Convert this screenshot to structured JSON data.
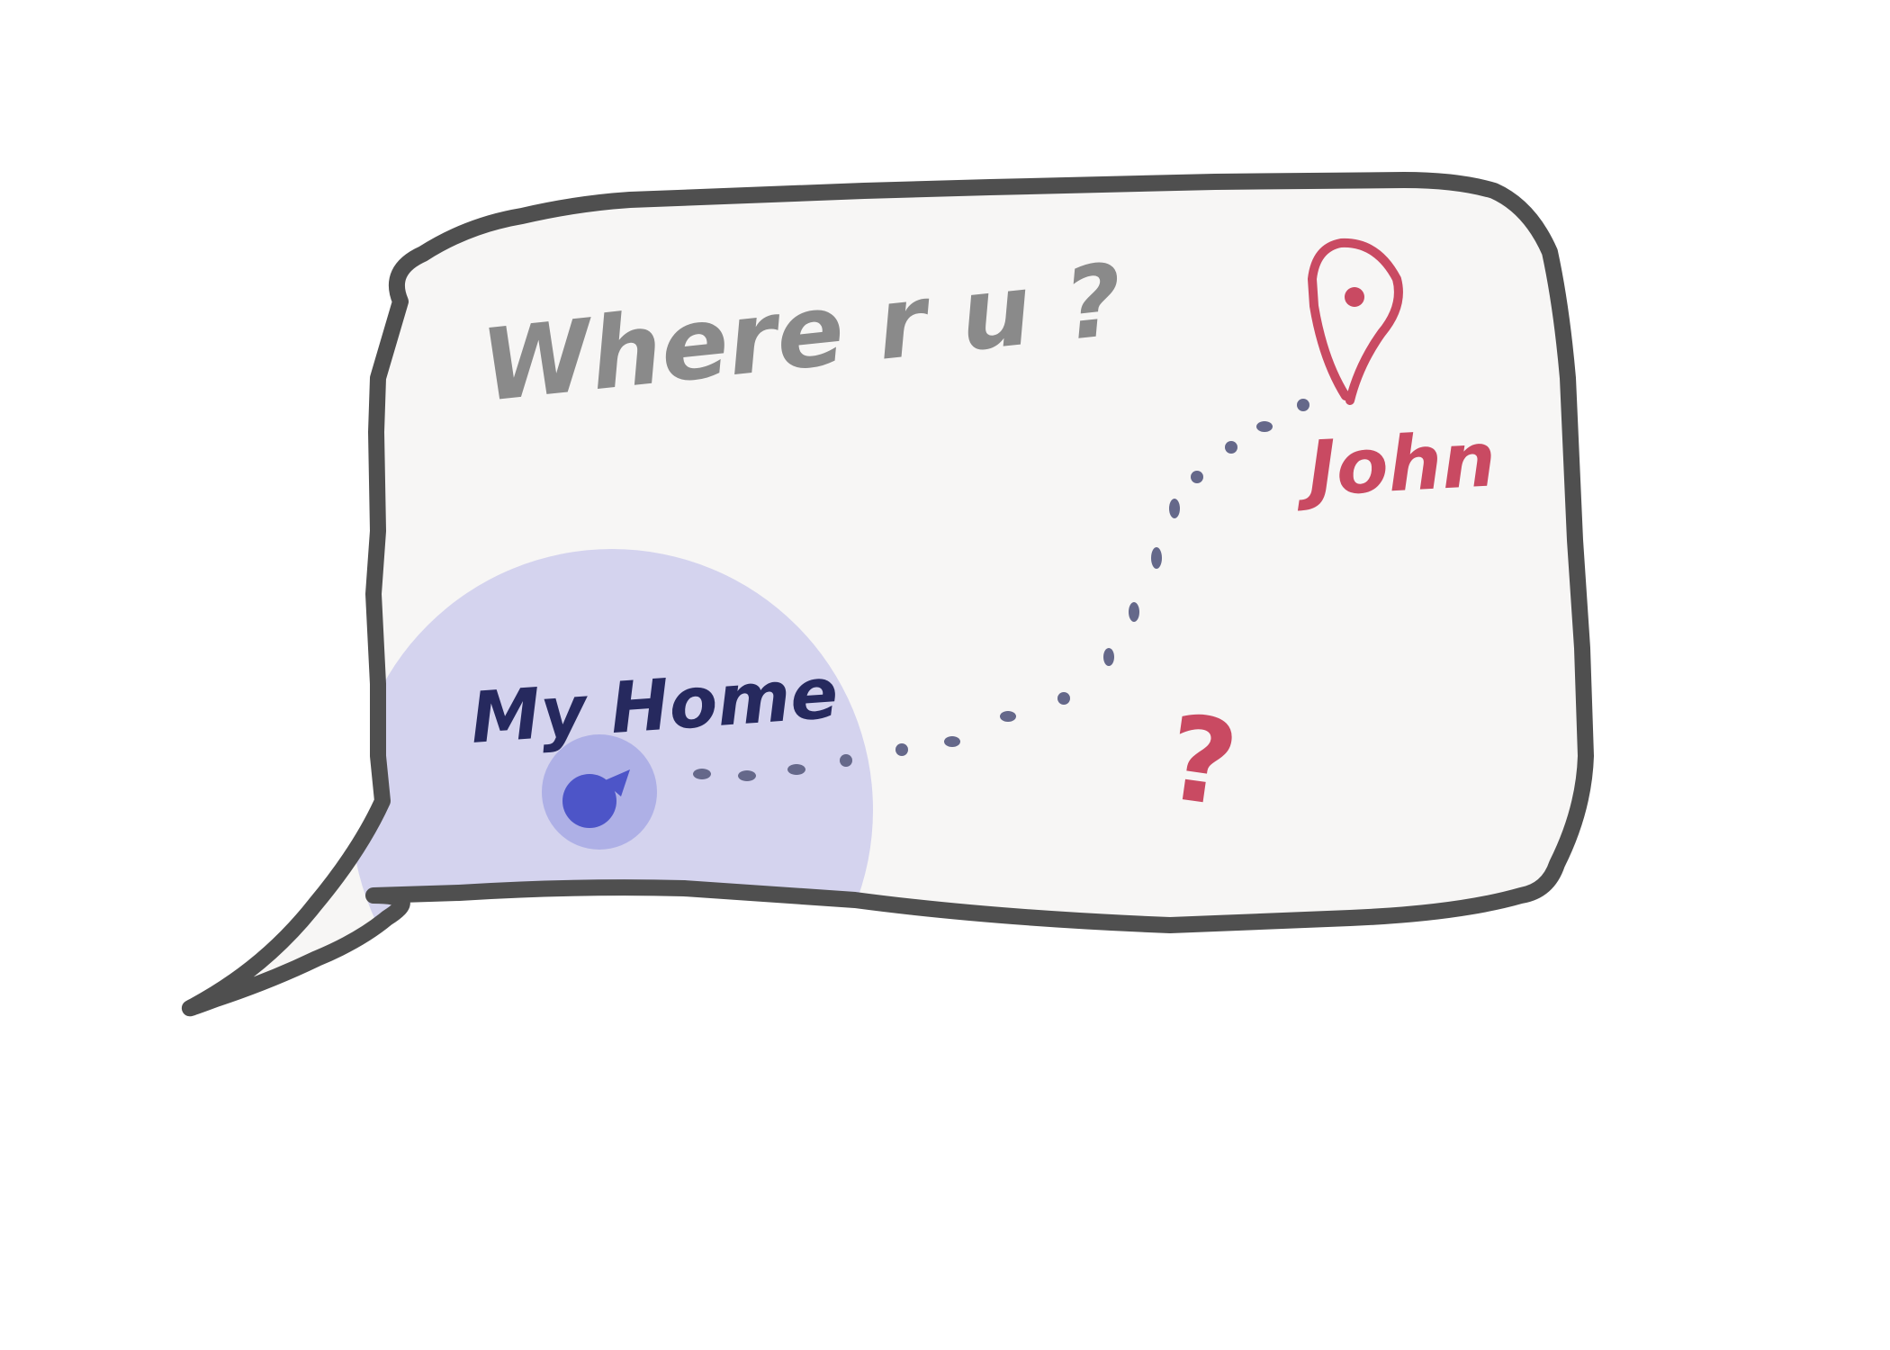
{
  "message": {
    "text": "Where r u ?"
  },
  "home": {
    "label": "My Home"
  },
  "contact": {
    "name": "John"
  },
  "route": {
    "question_mark": "?"
  },
  "icons": {
    "bubble": "speech-bubble-icon",
    "home_marker": "location-dot-icon",
    "contact_marker": "map-pin-icon"
  },
  "colors": {
    "bubble_fill": "#f7f6f5",
    "bubble_stroke": "#4f4f4f",
    "message_text": "#8a8a8a",
    "home_area": "#d4d3ee",
    "home_marker_halo": "#aeb0e6",
    "home_marker": "#4d55c8",
    "home_label": "#26295e",
    "route_dots": "#65688a",
    "contact": "#c94a62"
  }
}
